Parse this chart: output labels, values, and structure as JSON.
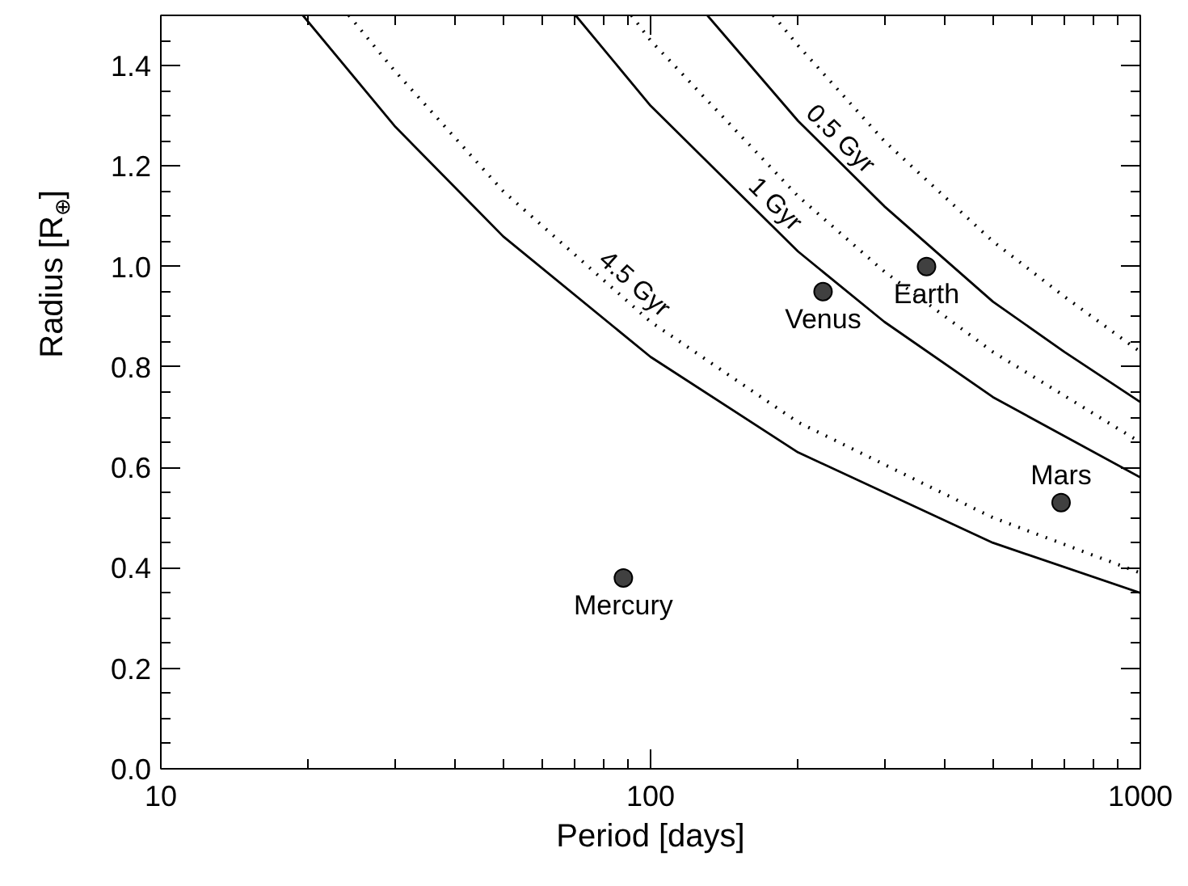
{
  "chart_data": {
    "type": "line",
    "xlabel": "Period [days]",
    "ylabel": "Radius [R$_{⊕}$]",
    "log": "x",
    "xlim": [
      10,
      1000
    ],
    "xticks": [
      {
        "value": 10,
        "label": "10"
      },
      {
        "value": 100,
        "label": "100"
      },
      {
        "value": 1000,
        "label": "1000"
      }
    ],
    "ylim": [
      0,
      1.5
    ],
    "yticks": [
      {
        "value": 0,
        "label": "0.0"
      },
      {
        "value": 0.2,
        "label": "0.2"
      },
      {
        "value": 0.4,
        "label": "0.4"
      },
      {
        "value": 0.6,
        "label": "0.6"
      },
      {
        "value": 0.8,
        "label": "0.8"
      },
      {
        "value": 1.0,
        "label": "1.0"
      },
      {
        "value": 1.2,
        "label": "1.2"
      },
      {
        "value": 1.4,
        "label": "1.4"
      }
    ],
    "grid": false,
    "series": [
      {
        "color": "#000000",
        "line_style": "solid",
        "x": [
          19.5,
          30,
          50,
          100,
          200,
          500,
          1000
        ],
        "values": [
          1.5,
          1.28,
          1.06,
          0.82,
          0.63,
          0.45,
          0.35
        ]
      },
      {
        "color": "#000000",
        "line_style": "dotted",
        "x": [
          24.2,
          30,
          50,
          100,
          200,
          500,
          1000
        ],
        "values": [
          1.5,
          1.39,
          1.15,
          0.89,
          0.69,
          0.5,
          0.39
        ]
      },
      {
        "color": "#000000",
        "line_style": "solid",
        "x": [
          70.3,
          100,
          200,
          300,
          500,
          1000
        ],
        "values": [
          1.5,
          1.32,
          1.03,
          0.89,
          0.74,
          0.58
        ]
      },
      {
        "color": "#000000",
        "line_style": "dotted",
        "x": [
          91.4,
          100,
          200,
          300,
          500,
          1000
        ],
        "values": [
          1.5,
          1.45,
          1.14,
          0.99,
          0.83,
          0.65
        ]
      },
      {
        "color": "#000000",
        "line_style": "solid",
        "x": [
          130.6,
          200,
          300,
          500,
          700,
          1000
        ],
        "values": [
          1.5,
          1.29,
          1.12,
          0.93,
          0.83,
          0.73
        ]
      },
      {
        "color": "#000000",
        "line_style": "dotted",
        "x": [
          178,
          200,
          300,
          500,
          700,
          1000
        ],
        "values": [
          1.5,
          1.44,
          1.25,
          1.05,
          0.94,
          0.83
        ]
      },
      {
        "type": "scatter",
        "color": "#404040",
        "marker": "circle",
        "x": [
          88,
          225,
          366,
          689
        ],
        "values": [
          0.38,
          0.95,
          1.0,
          0.53
        ]
      }
    ],
    "annotations": [
      {
        "text": "4.5 Gyr",
        "x": 88,
        "y": 0.94
      },
      {
        "text": "1 Gyr",
        "x": 170,
        "y": 1.1
      },
      {
        "text": "0.5 Gyr",
        "x": 231,
        "y": 1.23
      },
      {
        "text": "Mercury",
        "x": 88,
        "y": 0.38
      },
      {
        "text": "Venus",
        "x": 225,
        "y": 0.95
      },
      {
        "text": "Earth",
        "x": 366,
        "y": 1.0
      },
      {
        "text": "Mars",
        "x": 689,
        "y": 0.53
      }
    ]
  }
}
